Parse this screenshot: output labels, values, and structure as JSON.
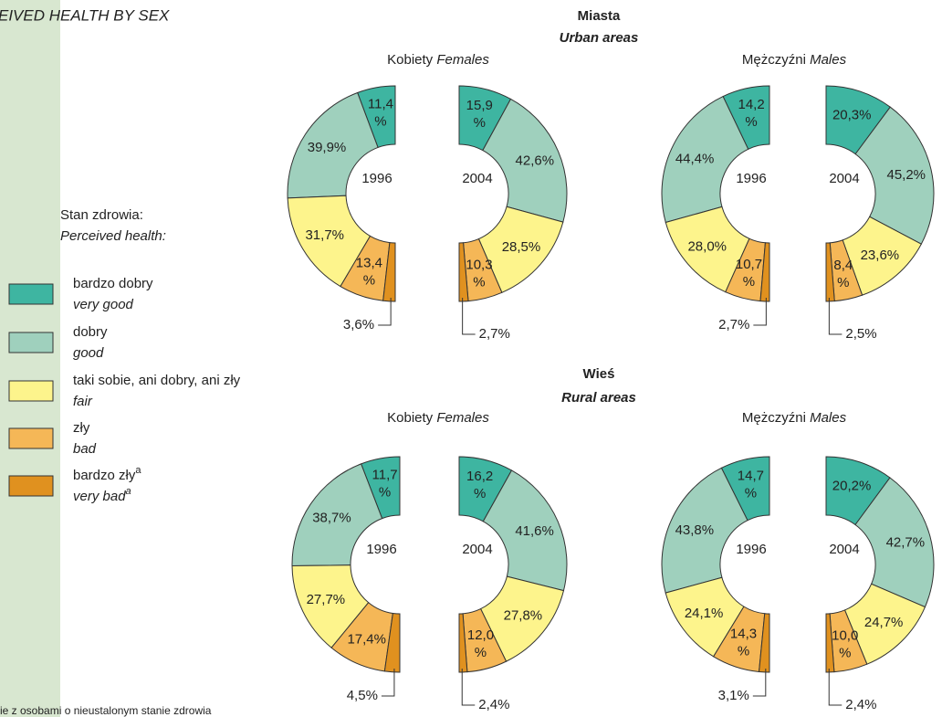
{
  "title": "EIVED HEALTH BY SEX",
  "footnote": "ie z osobami o nieustalonym stanie zdrowia",
  "legend": {
    "title": "Stan zdrowia:",
    "title_en": "Perceived health:",
    "items": [
      {
        "name": "bardzo dobry",
        "name_en": "very good",
        "color": "#3eb5a1"
      },
      {
        "name": "dobry",
        "name_en": "good",
        "color": "#9fd0bd"
      },
      {
        "name": "taki sobie, ani dobry, ani zły",
        "name_en": "fair",
        "color": "#fdf48c"
      },
      {
        "name": "zły",
        "name_en": "bad",
        "color": "#f5b757"
      },
      {
        "name": "bardzo zły",
        "name_sup": "a",
        "name_en": "very bad",
        "name_en_sup": "a",
        "color": "#e0911f"
      }
    ]
  },
  "sections": [
    {
      "title": "Miasta",
      "title_en": "Urban areas",
      "panels": [
        {
          "label": "Kobiety",
          "label_en": "Females"
        },
        {
          "label": "Mężczyźni",
          "label_en": "Males"
        }
      ]
    },
    {
      "title": "Wieś",
      "title_en": "Rural areas",
      "panels": [
        {
          "label": "Kobiety",
          "label_en": "Females"
        },
        {
          "label": "Mężczyźni",
          "label_en": "Males"
        }
      ]
    }
  ],
  "chart_data": [
    {
      "type": "half-donut",
      "center_label": "1996",
      "values": [
        11.4,
        39.9,
        31.7,
        13.4,
        3.6
      ],
      "value_labels": [
        "11,4%",
        "39,9%",
        "31,7%",
        "13,4%",
        "3,6%"
      ]
    },
    {
      "type": "half-donut",
      "center_label": "2004",
      "values": [
        15.9,
        42.6,
        28.5,
        10.3,
        2.7
      ],
      "value_labels": [
        "15,9%",
        "42,6%",
        "28,5%",
        "10,3%",
        "2,7%"
      ]
    },
    {
      "type": "half-donut",
      "center_label": "1996",
      "values": [
        14.2,
        44.4,
        28.0,
        10.7,
        2.7
      ],
      "value_labels": [
        "14,2%",
        "44,4%",
        "28,0%",
        "10,7%",
        "2,7%"
      ]
    },
    {
      "type": "half-donut",
      "center_label": "2004",
      "values": [
        20.3,
        45.2,
        23.6,
        8.4,
        2.5
      ],
      "value_labels": [
        "20,3%",
        "45,2%",
        "23,6%",
        "8,4%",
        "2,5%"
      ]
    },
    {
      "type": "half-donut",
      "center_label": "1996",
      "values": [
        11.7,
        38.7,
        27.7,
        17.4,
        4.5
      ],
      "value_labels": [
        "11,7%",
        "38,7%",
        "27,7%",
        "17,4%",
        "4,5%"
      ]
    },
    {
      "type": "half-donut",
      "center_label": "2004",
      "values": [
        16.2,
        41.6,
        27.8,
        12.0,
        2.4
      ],
      "value_labels": [
        "16,2%",
        "41,6%",
        "27,8%",
        "12,0%",
        "2,4%"
      ]
    },
    {
      "type": "half-donut",
      "center_label": "1996",
      "values": [
        14.7,
        43.8,
        24.1,
        14.3,
        3.1
      ],
      "value_labels": [
        "14,7%",
        "43,8%",
        "24,1%",
        "14,3%",
        "3,1%"
      ]
    },
    {
      "type": "half-donut",
      "center_label": "2004",
      "values": [
        20.2,
        42.7,
        24.7,
        10.0,
        2.4
      ],
      "value_labels": [
        "20,2%",
        "42,7%",
        "24,7%",
        "10,0%",
        "2,4%"
      ]
    }
  ]
}
